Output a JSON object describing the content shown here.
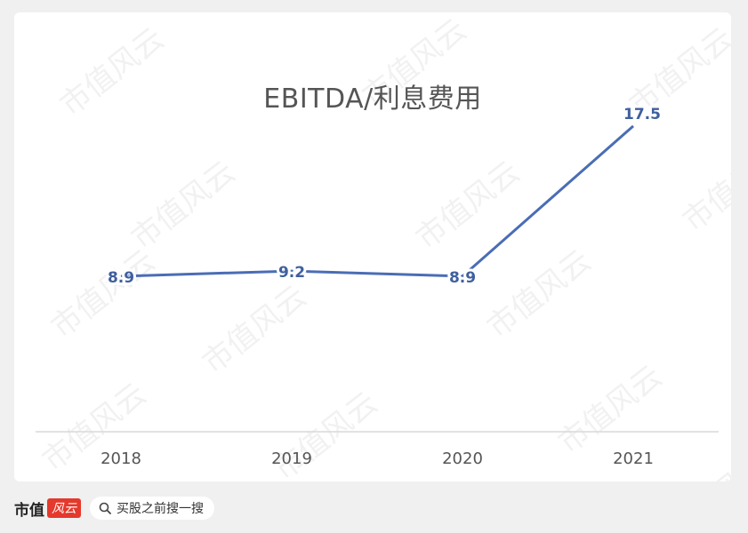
{
  "chart_data": {
    "type": "line",
    "title": "EBITDA/利息费用",
    "categories": [
      "2018",
      "2019",
      "2020",
      "2021"
    ],
    "values": [
      8.9,
      9.2,
      8.9,
      17.5
    ],
    "data_labels": [
      "8.9",
      "9.2",
      "8.9",
      "17.5"
    ],
    "ylim": [
      0,
      24
    ],
    "xlabel": "",
    "ylabel": "",
    "grid": false,
    "line_color": "#4a6db5",
    "label_color": "#3f5f9f"
  },
  "watermark": "市值风云",
  "footer": {
    "brand": "市值",
    "brand_badge": "风云",
    "search_text": "买股之前搜一搜"
  },
  "colors": {
    "background": "#f0f0f0",
    "card": "#ffffff",
    "axis": "#d9d9d9",
    "accent": "#e4392c"
  }
}
